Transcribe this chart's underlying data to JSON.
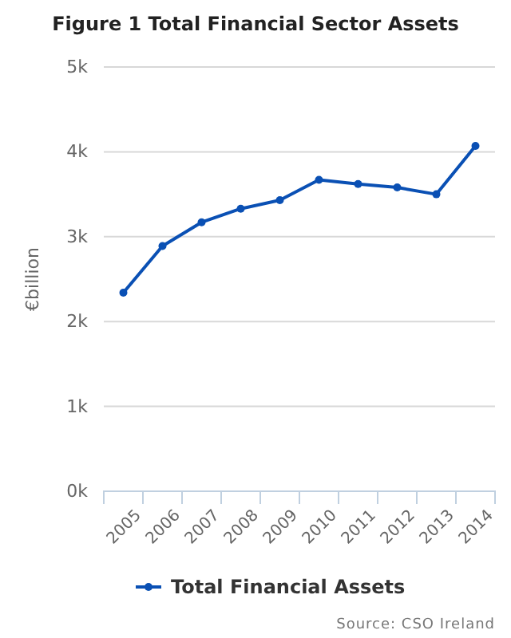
{
  "chart_data": {
    "type": "line",
    "title": "Figure 1 Total Financial Sector Assets",
    "ylabel": "€billion",
    "categories": [
      "2005",
      "2006",
      "2007",
      "2008",
      "2009",
      "2010",
      "2011",
      "2012",
      "2013",
      "2014"
    ],
    "series": [
      {
        "name": "Total Financial Assets",
        "color": "#0a50b4",
        "values": [
          2340,
          2890,
          3170,
          3330,
          3430,
          3670,
          3620,
          3580,
          3500,
          4070
        ]
      }
    ],
    "ylim": [
      0,
      5000
    ],
    "yticks": [
      {
        "value": 0,
        "label": "0k"
      },
      {
        "value": 1000,
        "label": "1k"
      },
      {
        "value": 2000,
        "label": "2k"
      },
      {
        "value": 3000,
        "label": "3k"
      },
      {
        "value": 4000,
        "label": "4k"
      },
      {
        "value": 5000,
        "label": "5k"
      }
    ],
    "grid": "y",
    "legend": "bottom",
    "marker": "circle",
    "line_style": "solid",
    "annotations": [
      "Source: CSO Ireland"
    ]
  }
}
